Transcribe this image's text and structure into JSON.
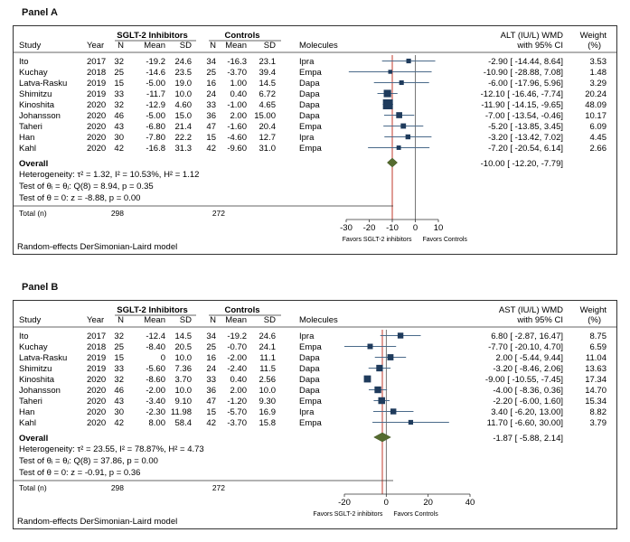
{
  "chart_data": [
    {
      "type": "forest",
      "panel_label": "Panel A",
      "header": {
        "group1": "SGLT-2 Inhibitors",
        "group2": "Controls",
        "study": "Study",
        "year": "Year",
        "n": "N",
        "mean": "Mean",
        "sd": "SD",
        "molecules": "Molecules",
        "effect": "ALT (IU/L) WMD",
        "ci": "with 95% CI",
        "weight": "Weight",
        "weight_unit": "(%)"
      },
      "studies": [
        {
          "study": "Ito",
          "year": "2017",
          "n1": "32",
          "mean1": "-19.2",
          "sd1": "24.6",
          "n2": "34",
          "mean2": "-16.3",
          "sd2": "23.1",
          "molecule": "Ipra",
          "wmd": -2.9,
          "lo": -14.44,
          "hi": 8.64,
          "weight": 3.53,
          "ci_text": "-2.90 [ -14.44,   8.64]",
          "weight_text": "3.53"
        },
        {
          "study": "Kuchay",
          "year": "2018",
          "n1": "25",
          "mean1": "-14.6",
          "sd1": "23.5",
          "n2": "25",
          "mean2": "-3.70",
          "sd2": "39.4",
          "molecule": "Empa",
          "wmd": -10.9,
          "lo": -28.88,
          "hi": 7.08,
          "weight": 1.48,
          "ci_text": "-10.90 [ -28.88,   7.08]",
          "weight_text": "1.48"
        },
        {
          "study": "Latva-Rasku",
          "year": "2019",
          "n1": "15",
          "mean1": "-5.00",
          "sd1": "19.0",
          "n2": "16",
          "mean2": "1.00",
          "sd2": "14.5",
          "molecule": "Dapa",
          "wmd": -6.0,
          "lo": -17.96,
          "hi": 5.96,
          "weight": 3.29,
          "ci_text": "-6.00 [ -17.96,   5.96]",
          "weight_text": "3.29"
        },
        {
          "study": "Shimitzu",
          "year": "2019",
          "n1": "33",
          "mean1": "-11.7",
          "sd1": "10.0",
          "n2": "24",
          "mean2": "0.40",
          "sd2": "6.72",
          "molecule": "Dapa",
          "wmd": -12.1,
          "lo": -16.46,
          "hi": -7.74,
          "weight": 20.24,
          "ci_text": "-12.10 [ -16.46,  -7.74]",
          "weight_text": "20.24"
        },
        {
          "study": "Kinoshita",
          "year": "2020",
          "n1": "32",
          "mean1": "-12.9",
          "sd1": "4.60",
          "n2": "33",
          "mean2": "-1.00",
          "sd2": "4.65",
          "molecule": "Dapa",
          "wmd": -11.9,
          "lo": -14.15,
          "hi": -9.65,
          "weight": 48.09,
          "ci_text": "-11.90 [ -14.15,  -9.65]",
          "weight_text": "48.09"
        },
        {
          "study": "Johansson",
          "year": "2020",
          "n1": "46",
          "mean1": "-5.00",
          "sd1": "15.0",
          "n2": "36",
          "mean2": "2.00",
          "sd2": "15.00",
          "molecule": "Dapa",
          "wmd": -7.0,
          "lo": -13.54,
          "hi": -0.46,
          "weight": 10.17,
          "ci_text": "-7.00 [ -13.54,  -0.46]",
          "weight_text": "10.17"
        },
        {
          "study": "Taheri",
          "year": "2020",
          "n1": "43",
          "mean1": "-6.80",
          "sd1": "21.4",
          "n2": "47",
          "mean2": "-1.60",
          "sd2": "20.4",
          "molecule": "Empa",
          "wmd": -5.2,
          "lo": -13.85,
          "hi": 3.45,
          "weight": 6.09,
          "ci_text": "-5.20 [ -13.85,   3.45]",
          "weight_text": "6.09"
        },
        {
          "study": "Han",
          "year": "2020",
          "n1": "30",
          "mean1": "-7.80",
          "sd1": "22.2",
          "n2": "15",
          "mean2": "-4.60",
          "sd2": "12.7",
          "molecule": "Ipra",
          "wmd": -3.2,
          "lo": -13.42,
          "hi": 7.02,
          "weight": 4.45,
          "ci_text": "-3.20 [ -13.42,   7.02]",
          "weight_text": "4.45"
        },
        {
          "study": "Kahl",
          "year": "2020",
          "n1": "42",
          "mean1": "-16.8",
          "sd1": "31.3",
          "n2": "42",
          "mean2": "-9.60",
          "sd2": "31.0",
          "molecule": "Empa",
          "wmd": -7.2,
          "lo": -20.54,
          "hi": 6.14,
          "weight": 2.66,
          "ci_text": "-7.20 [ -20.54,   6.14]",
          "weight_text": "2.66"
        }
      ],
      "overall": {
        "label": "Overall",
        "wmd": -10.0,
        "lo": -12.2,
        "hi": -7.79,
        "ci_text": "-10.00 [ -12.20,  -7.79]"
      },
      "heterogeneity_text": "Heterogeneity: τ² = 1.32, I² = 10.53%, H² = 1.12",
      "test_theta_i_text": "Test of θᵢ = θⱼ: Q(8) = 8.94, p = 0.35",
      "test_theta_text": "Test of θ = 0: z = -8.88, p = 0.00",
      "total_label": "Total (n)",
      "total_n1": "298",
      "total_n2": "272",
      "model_text": "Random-effects DerSimonian-Laird model",
      "favors_left": "Favors SGLT-2 inhibitors",
      "favors_right": "Favors Controls",
      "xlim": [
        -30,
        10
      ],
      "xticks": [
        -30,
        -20,
        -10,
        0,
        10
      ],
      "colors": {
        "marker": "#1f3b5c",
        "diamond": "#556b2f",
        "overall_line": "#c0392b",
        "ci_line": "#4a6a8a"
      }
    },
    {
      "type": "forest",
      "panel_label": "Panel B",
      "header": {
        "group1": "SGLT-2 Inhibitors",
        "group2": "Controls",
        "study": "Study",
        "year": "Year",
        "n": "N",
        "mean": "Mean",
        "sd": "SD",
        "molecules": "Molecules",
        "effect": "AST (IU/L) WMD",
        "ci": "with 95% CI",
        "weight": "Weight",
        "weight_unit": "(%)"
      },
      "studies": [
        {
          "study": "Ito",
          "year": "2017",
          "n1": "32",
          "mean1": "-12.4",
          "sd1": "14.5",
          "n2": "34",
          "mean2": "-19.2",
          "sd2": "24.6",
          "molecule": "Ipra",
          "wmd": 6.8,
          "lo": -2.87,
          "hi": 16.47,
          "weight": 8.75,
          "ci_text": "6.80 [  -2.87,  16.47]",
          "weight_text": "8.75"
        },
        {
          "study": "Kuchay",
          "year": "2018",
          "n1": "25",
          "mean1": "-8.40",
          "sd1": "20.5",
          "n2": "25",
          "mean2": "-0.70",
          "sd2": "24.1",
          "molecule": "Empa",
          "wmd": -7.7,
          "lo": -20.1,
          "hi": 4.7,
          "weight": 6.59,
          "ci_text": "-7.70 [ -20.10,   4.70]",
          "weight_text": "6.59"
        },
        {
          "study": "Latva-Rasku",
          "year": "2019",
          "n1": "15",
          "mean1": "0",
          "sd1": "10.0",
          "n2": "16",
          "mean2": "-2.00",
          "sd2": "11.1",
          "molecule": "Dapa",
          "wmd": 2.0,
          "lo": -5.44,
          "hi": 9.44,
          "weight": 11.04,
          "ci_text": "2.00 [  -5.44,   9.44]",
          "weight_text": "11.04"
        },
        {
          "study": "Shimitzu",
          "year": "2019",
          "n1": "33",
          "mean1": "-5.60",
          "sd1": "7.36",
          "n2": "24",
          "mean2": "-2.40",
          "sd2": "11.5",
          "molecule": "Dapa",
          "wmd": -3.2,
          "lo": -8.46,
          "hi": 2.06,
          "weight": 13.63,
          "ci_text": "-3.20 [  -8.46,   2.06]",
          "weight_text": "13.63"
        },
        {
          "study": "Kinoshita",
          "year": "2020",
          "n1": "32",
          "mean1": "-8.60",
          "sd1": "3.70",
          "n2": "33",
          "mean2": "0.40",
          "sd2": "2.56",
          "molecule": "Dapa",
          "wmd": -9.0,
          "lo": -10.55,
          "hi": -7.45,
          "weight": 17.34,
          "ci_text": "-9.00 [ -10.55,  -7.45]",
          "weight_text": "17.34"
        },
        {
          "study": "Johansson",
          "year": "2020",
          "n1": "46",
          "mean1": "-2.00",
          "sd1": "10.0",
          "n2": "36",
          "mean2": "2.00",
          "sd2": "10.0",
          "molecule": "Dapa",
          "wmd": -4.0,
          "lo": -8.36,
          "hi": 0.36,
          "weight": 14.7,
          "ci_text": "-4.00 [  -8.36,   0.36]",
          "weight_text": "14.70"
        },
        {
          "study": "Taheri",
          "year": "2020",
          "n1": "43",
          "mean1": "-3.40",
          "sd1": "9.10",
          "n2": "47",
          "mean2": "-1.20",
          "sd2": "9.30",
          "molecule": "Empa",
          "wmd": -2.2,
          "lo": -6.0,
          "hi": 1.6,
          "weight": 15.34,
          "ci_text": "-2.20 [  -6.00,   1.60]",
          "weight_text": "15.34"
        },
        {
          "study": "Han",
          "year": "2020",
          "n1": "30",
          "mean1": "-2.30",
          "sd1": "11.98",
          "n2": "15",
          "mean2": "-5.70",
          "sd2": "16.9",
          "molecule": "Ipra",
          "wmd": 3.4,
          "lo": -6.2,
          "hi": 13.0,
          "weight": 8.82,
          "ci_text": "3.40 [  -6.20,  13.00]",
          "weight_text": "8.82"
        },
        {
          "study": "Kahl",
          "year": "2020",
          "n1": "42",
          "mean1": "8.00",
          "sd1": "58.4",
          "n2": "42",
          "mean2": "-3.70",
          "sd2": "15.8",
          "molecule": "Empa",
          "wmd": 11.7,
          "lo": -6.6,
          "hi": 30.0,
          "weight": 3.79,
          "ci_text": "11.70 [  -6.60,  30.00]",
          "weight_text": "3.79"
        }
      ],
      "overall": {
        "label": "Overall",
        "wmd": -1.87,
        "lo": -5.88,
        "hi": 2.14,
        "ci_text": "-1.87 [  -5.88,   2.14]"
      },
      "heterogeneity_text": "Heterogeneity: τ² = 23.55, I² = 78.87%, H² = 4.73",
      "test_theta_i_text": "Test of θᵢ = θⱼ: Q(8) = 37.86, p = 0.00",
      "test_theta_text": "Test of θ = 0: z = -0.91, p = 0.36",
      "total_label": "Total (n)",
      "total_n1": "298",
      "total_n2": "272",
      "model_text": "Random-effects DerSimonian-Laird model",
      "favors_left": "Favors SGLT-2 inhibitors",
      "favors_right": "Favors Controls",
      "xlim": [
        -20,
        40
      ],
      "xticks": [
        -20,
        0,
        20,
        40
      ],
      "colors": {
        "marker": "#1f3b5c",
        "diamond": "#556b2f",
        "overall_line": "#c0392b",
        "ci_line": "#4a6a8a"
      }
    }
  ]
}
